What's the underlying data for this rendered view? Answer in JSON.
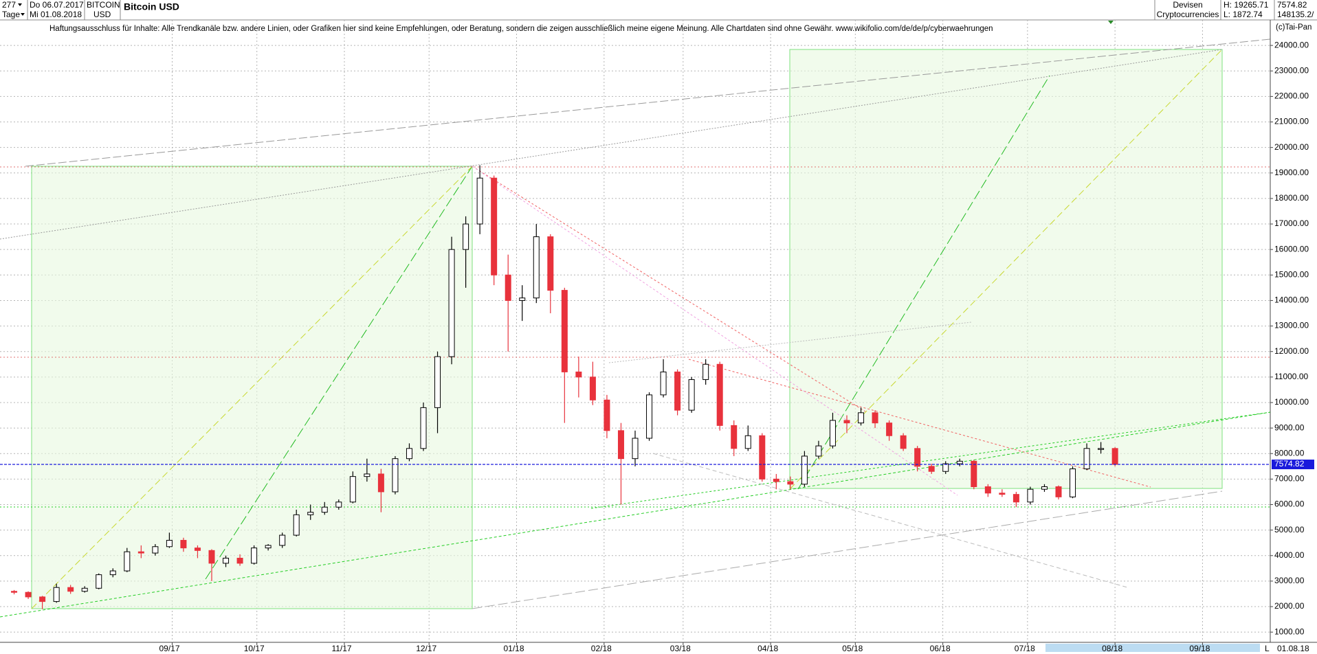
{
  "header": {
    "count": "277",
    "unit": "Tage",
    "from": "Do 06.07.2017",
    "to": "Mi 01.08.2018",
    "symbol": "BITCOIN",
    "currency": "USD",
    "group": "Devisen",
    "market": "Cryptocurrencies",
    "high": "H: 19265.71",
    "low": "L: 1872.74",
    "volume": "148135.2/",
    "copyright": "(c)Tai-Pan",
    "end_date": "01.08.18",
    "scale": "L"
  },
  "disclaimer": "Haftungsausschluss für Inhalte: Alle Trendkanäle bzw. andere Linien, oder Grafiken hier sind keine Empfehlungen, oder Beratung, sondern die zeigen ausschließlich meine eigene Meinung. Alle Chartdaten sind ohne Gewähr.  www.wikifolio.com/de/de/p/cyberwaehrungen",
  "chart_data": {
    "type": "candlestick",
    "title": "Bitcoin USD",
    "up_color": "#ffffff",
    "down_color": "#e8323c",
    "edge_color": "#000000",
    "grid": true,
    "x": [
      1,
      6,
      11,
      16,
      21,
      26,
      31,
      36,
      41,
      46,
      51,
      56,
      61,
      66,
      71,
      76,
      81,
      86,
      91,
      96,
      101,
      106,
      111,
      116,
      121,
      126,
      131,
      136,
      141,
      146,
      151,
      156,
      161,
      166,
      171,
      176,
      181,
      186,
      191,
      196,
      201,
      206,
      211,
      216,
      221,
      226,
      231,
      236,
      241,
      246,
      251,
      256,
      261,
      266,
      271,
      276,
      281,
      286,
      291,
      296,
      301,
      306,
      311,
      316,
      321,
      326,
      331,
      336,
      341,
      346,
      351,
      356,
      361,
      366,
      371,
      376,
      381,
      386,
      391
    ],
    "open": [
      2600,
      2560,
      2380,
      2200,
      2750,
      2600,
      2720,
      3250,
      3400,
      4150,
      4100,
      4350,
      4600,
      4300,
      4200,
      3700,
      3900,
      3700,
      4300,
      4400,
      4800,
      5600,
      5700,
      5900,
      6100,
      7100,
      7200,
      6500,
      7800,
      8200,
      9800,
      11800,
      16000,
      17000,
      18800,
      15000,
      14000,
      14100,
      16500,
      14400,
      11200,
      11000,
      10100,
      8900,
      7800,
      8600,
      10300,
      11200,
      9700,
      10900,
      11500,
      9100,
      8200,
      8700,
      7000,
      6900,
      6800,
      7900,
      8300,
      9300,
      9200,
      9600,
      9200,
      8700,
      8200,
      7500,
      7300,
      7600,
      7700,
      6700,
      6450,
      6400,
      6100,
      6600,
      6700,
      6300,
      7400,
      8200,
      8200
    ],
    "high": [
      2650,
      2600,
      2420,
      2900,
      2850,
      2800,
      3300,
      3500,
      4300,
      4400,
      4450,
      4900,
      4700,
      4400,
      4250,
      4000,
      4050,
      4400,
      4450,
      4900,
      5800,
      6000,
      6100,
      6200,
      7300,
      7800,
      7400,
      7900,
      8400,
      10000,
      12000,
      16500,
      17300,
      19300,
      18900,
      15800,
      14600,
      17000,
      16600,
      14500,
      11800,
      11600,
      10300,
      9200,
      8900,
      10400,
      11700,
      11300,
      11000,
      11700,
      11600,
      9300,
      9100,
      8800,
      7200,
      7100,
      8100,
      8500,
      9600,
      9500,
      9800,
      9700,
      9300,
      8800,
      8300,
      7600,
      7700,
      7800,
      7750,
      6800,
      6600,
      6500,
      6700,
      6800,
      6750,
      7500,
      8400,
      8450,
      8250
    ],
    "low": [
      2480,
      2300,
      1900,
      2150,
      2500,
      2550,
      2680,
      3150,
      3350,
      3900,
      4000,
      4300,
      4150,
      3900,
      3000,
      3550,
      3600,
      3650,
      4200,
      4300,
      4750,
      5400,
      5600,
      5800,
      6050,
      6900,
      5700,
      6400,
      7700,
      8100,
      8800,
      11500,
      14500,
      16600,
      14600,
      12000,
      13200,
      13900,
      13500,
      9200,
      10200,
      9900,
      8600,
      6000,
      7500,
      8500,
      10200,
      9500,
      9600,
      10700,
      8900,
      7900,
      8100,
      6900,
      6600,
      6600,
      6700,
      7800,
      8200,
      8800,
      9100,
      9000,
      8500,
      8100,
      7300,
      7200,
      7200,
      7500,
      6600,
      6300,
      6300,
      5900,
      6000,
      6500,
      6200,
      6250,
      7350,
      8000,
      7500
    ],
    "close": [
      2560,
      2380,
      2200,
      2750,
      2600,
      2720,
      3250,
      3400,
      4150,
      4100,
      4350,
      4600,
      4300,
      4200,
      3700,
      3900,
      3700,
      4300,
      4400,
      4800,
      5600,
      5700,
      5900,
      6100,
      7100,
      7200,
      6500,
      7800,
      8200,
      9800,
      11800,
      16000,
      17000,
      18800,
      15000,
      14000,
      14100,
      16500,
      14400,
      11200,
      11000,
      10100,
      8900,
      7800,
      8600,
      10300,
      11200,
      9700,
      10900,
      11500,
      9100,
      8200,
      8700,
      7000,
      6900,
      6800,
      7900,
      8300,
      9300,
      9200,
      9600,
      9200,
      8700,
      8200,
      7500,
      7300,
      7600,
      7700,
      6700,
      6450,
      6400,
      6100,
      6600,
      6700,
      6300,
      7400,
      8200,
      8200,
      7574.82
    ],
    "xlim": [
      -4,
      446
    ],
    "xticks": [
      {
        "value": 57,
        "label": "09/17"
      },
      {
        "value": 87,
        "label": "10/17"
      },
      {
        "value": 118,
        "label": "11/17"
      },
      {
        "value": 148,
        "label": "12/17"
      },
      {
        "value": 179,
        "label": "01/18"
      },
      {
        "value": 210,
        "label": "02/18"
      },
      {
        "value": 238,
        "label": "03/18"
      },
      {
        "value": 269,
        "label": "04/18"
      },
      {
        "value": 299,
        "label": "05/18"
      },
      {
        "value": 330,
        "label": "06/18"
      },
      {
        "value": 360,
        "label": "07/18"
      },
      {
        "value": 391,
        "label": "08/18"
      },
      {
        "value": 422,
        "label": "09/18"
      }
    ],
    "ylim": [
      600,
      25000
    ],
    "yticks": [
      {
        "value": 1000,
        "label": "1000.00"
      },
      {
        "value": 2000,
        "label": "2000.00"
      },
      {
        "value": 3000,
        "label": "3000.00"
      },
      {
        "value": 4000,
        "label": "4000.00"
      },
      {
        "value": 5000,
        "label": "5000.00"
      },
      {
        "value": 6000,
        "label": "6000.00"
      },
      {
        "value": 7000,
        "label": "7000.00"
      },
      {
        "value": 8000,
        "label": "8000.00"
      },
      {
        "value": 9000,
        "label": "9000.00"
      },
      {
        "value": 10000,
        "label": "10000.00"
      },
      {
        "value": 11000,
        "label": "11000.00"
      },
      {
        "value": 12000,
        "label": "12000.00"
      },
      {
        "value": 13000,
        "label": "13000.00"
      },
      {
        "value": 14000,
        "label": "14000.00"
      },
      {
        "value": 15000,
        "label": "15000.00"
      },
      {
        "value": 16000,
        "label": "16000.00"
      },
      {
        "value": 17000,
        "label": "17000.00"
      },
      {
        "value": 18000,
        "label": "18000.00"
      },
      {
        "value": 19000,
        "label": "19000.00"
      },
      {
        "value": 20000,
        "label": "20000.00"
      },
      {
        "value": 21000,
        "label": "21000.00"
      },
      {
        "value": 22000,
        "label": "22000.00"
      },
      {
        "value": 23000,
        "label": "23000.00"
      },
      {
        "value": 24000,
        "label": "24000.00"
      }
    ]
  }
}
